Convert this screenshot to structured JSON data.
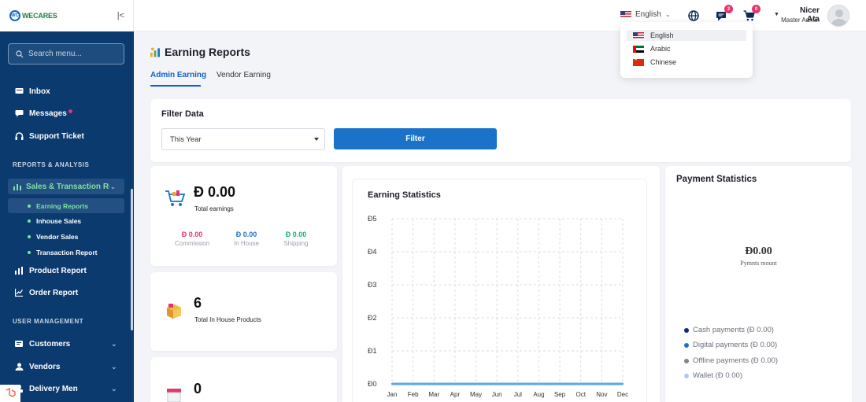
{
  "brand": {
    "logo_mark": "WC",
    "name": "WECARES"
  },
  "search": {
    "placeholder": "Search menu..."
  },
  "sidebar": {
    "items_top": [
      {
        "label": "Inbox",
        "icon": "inbox-icon"
      },
      {
        "label": "Messages",
        "icon": "messages-icon"
      },
      {
        "label": "Support Ticket",
        "icon": "headset-icon"
      }
    ],
    "section_reports": "REPORTS & ANALYSIS",
    "active_group": "Sales & Transaction Report",
    "sub_items": [
      "Earning Reports",
      "Inhouse Sales",
      "Vendor Sales",
      "Transaction Report"
    ],
    "items_reports": [
      {
        "label": "Product Report",
        "icon": "product-report-icon"
      },
      {
        "label": "Order Report",
        "icon": "order-report-icon"
      }
    ],
    "section_users": "USER MANAGEMENT",
    "items_users": [
      {
        "label": "Customers",
        "icon": "customers-icon"
      },
      {
        "label": "Vendors",
        "icon": "vendors-icon"
      },
      {
        "label": "Delivery Men",
        "icon": "delivery-icon"
      }
    ]
  },
  "topbar": {
    "language": "English",
    "messages_badge": "2",
    "cart_badge": "0",
    "user_name": "Nicer Ata",
    "user_role": "Master Admin"
  },
  "language_menu": [
    "English",
    "Arabic",
    "Chinese"
  ],
  "page": {
    "title": "Earning Reports",
    "tabs": [
      "Admin Earning",
      "Vendor Earning"
    ]
  },
  "filter": {
    "title": "Filter Data",
    "selected": "This Year",
    "button": "Filter"
  },
  "earnings_card": {
    "value": "Ð 0.00",
    "label": "Total earnings",
    "stats": [
      {
        "value": "Ð 0.00",
        "label": "Commission",
        "color": "#e5356d"
      },
      {
        "value": "Ð 0.00",
        "label": "In House",
        "color": "#1a73c8"
      },
      {
        "value": "Ð 0.00",
        "label": "Shipping",
        "color": "#17b26a"
      }
    ]
  },
  "products_card": {
    "value": "6",
    "label": "Total In House Products"
  },
  "third_card": {
    "value": "0"
  },
  "chart_data": {
    "type": "line",
    "title": "Earning Statistics",
    "categories": [
      "Jan",
      "Feb",
      "Mar",
      "Apr",
      "May",
      "Jun",
      "Jul",
      "Aug",
      "Sep",
      "Oct",
      "Nov",
      "Dec"
    ],
    "y_tick_labels": [
      "Ð0",
      "Ð1",
      "Ð2",
      "Ð3",
      "Ð4",
      "Ð5"
    ],
    "series": [
      {
        "values": [
          0,
          0,
          0,
          0,
          0,
          0,
          0,
          0,
          0,
          0,
          0,
          0
        ],
        "color": "#5aa6f0"
      }
    ],
    "ylim": [
      0,
      5
    ],
    "grid": true
  },
  "payment": {
    "title": "Payment Statistics",
    "total": "Ð0.00",
    "subtitle": "Pymnts mount",
    "legend": [
      {
        "label": "Cash payments (Ð 0.00)",
        "color": "#0b2a7a"
      },
      {
        "label": "Digital payments (Ð 0.00)",
        "color": "#1a73c8"
      },
      {
        "label": "Offline payments (Ð 0.00)",
        "color": "#7b8798"
      },
      {
        "label": "Wallet (Ð 0.00)",
        "color": "#a8cdf2"
      }
    ]
  }
}
